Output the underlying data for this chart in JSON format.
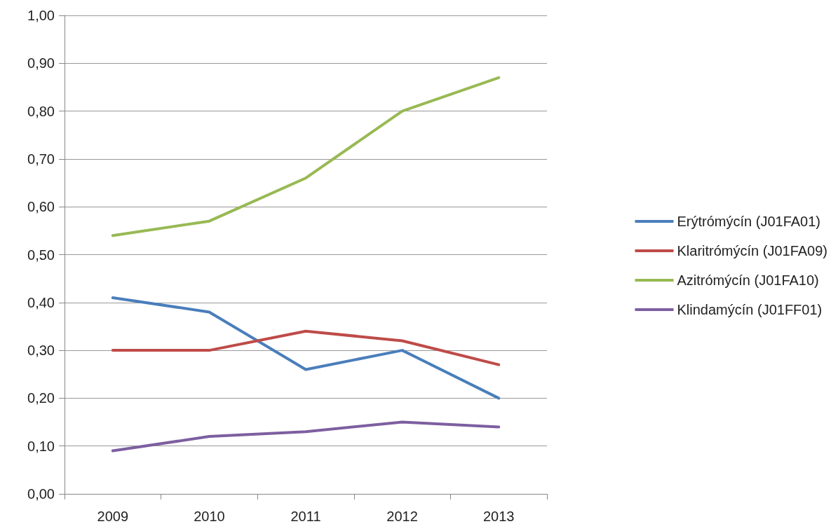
{
  "chart_data": {
    "type": "line",
    "categories": [
      "2009",
      "2010",
      "2011",
      "2012",
      "2013"
    ],
    "series": [
      {
        "name": "Erýtrómýcín (J01FA01)",
        "color": "#4a7ebb",
        "values": [
          0.41,
          0.38,
          0.26,
          0.3,
          0.2
        ]
      },
      {
        "name": "Klaritrómýcín (J01FA09)",
        "color": "#be4b48",
        "values": [
          0.3,
          0.3,
          0.34,
          0.32,
          0.27
        ]
      },
      {
        "name": "Azitrómýcín (J01FA10)",
        "color": "#98b954",
        "values": [
          0.54,
          0.57,
          0.66,
          0.8,
          0.87
        ]
      },
      {
        "name": "Klindamýcín (J01FF01)",
        "color": "#7d5fa0",
        "values": [
          0.09,
          0.12,
          0.13,
          0.15,
          0.14
        ]
      }
    ],
    "ylim": [
      0,
      1
    ],
    "yticks": [
      {
        "value": 0,
        "label": "0,00"
      },
      {
        "value": 0.1,
        "label": "0,10"
      },
      {
        "value": 0.2,
        "label": "0,20"
      },
      {
        "value": 0.3,
        "label": "0,30"
      },
      {
        "value": 0.4,
        "label": "0,40"
      },
      {
        "value": 0.5,
        "label": "0,50"
      },
      {
        "value": 0.6,
        "label": "0,60"
      },
      {
        "value": 0.7,
        "label": "0,70"
      },
      {
        "value": 0.8,
        "label": "0,80"
      },
      {
        "value": 0.9,
        "label": "0,90"
      },
      {
        "value": 1,
        "label": "1,00"
      }
    ],
    "grid": "y",
    "legend": "right",
    "marker": "none",
    "line_style": "solid"
  }
}
